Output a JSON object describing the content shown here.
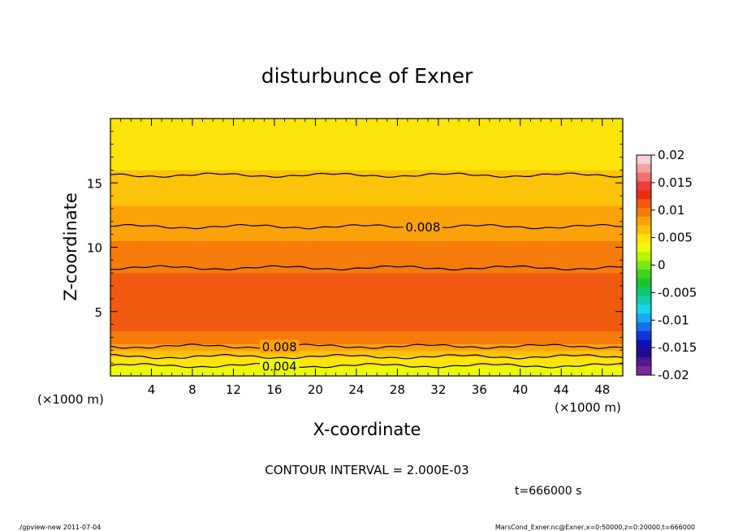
{
  "chart_data": {
    "type": "heatmap",
    "title": "disturbunce of Exner",
    "xlabel": "X-coordinate",
    "ylabel": "Z-coordinate",
    "x_unit_left": "(×1000 m)",
    "x_unit_right": "(×1000 m)",
    "xlim": [
      0,
      50
    ],
    "ylim": [
      0,
      20
    ],
    "xticks": [
      4,
      8,
      12,
      16,
      20,
      24,
      28,
      32,
      36,
      40,
      44,
      48
    ],
    "yticks": [
      5,
      10,
      15
    ],
    "colorbar": {
      "min": -0.02,
      "max": 0.02,
      "ticks": [
        "0.02",
        "0.015",
        "0.01",
        "0.005",
        "0",
        "-0.005",
        "-0.01",
        "-0.015",
        "-0.02"
      ],
      "colors": [
        "#fbd0d8",
        "#f6a0a6",
        "#f07070",
        "#ec3d3a",
        "#ee2a14",
        "#f05a10",
        "#f57b0a",
        "#fba20a",
        "#fdc20a",
        "#fde40a",
        "#ecfb0a",
        "#b8f500",
        "#7de61a",
        "#42d21e",
        "#19c52f",
        "#14c673",
        "#14cbae",
        "#16d6e6",
        "#1aa6f0",
        "#1570eb",
        "#1236d6",
        "#0c12b0",
        "#210c8e",
        "#4f1a90",
        "#7a2a98"
      ]
    },
    "contour_profile": {
      "z": [
        0,
        1,
        2,
        3,
        4,
        6,
        8,
        10,
        12,
        15,
        18,
        20
      ],
      "value": [
        0.0028,
        0.0045,
        0.0072,
        0.0098,
        0.0109,
        0.0113,
        0.0104,
        0.0092,
        0.0079,
        0.0061,
        0.0047,
        0.004
      ]
    },
    "contour_lines": [
      {
        "level": 0.004,
        "z": 0.8,
        "label": "0.004",
        "label_x": 16.5
      },
      {
        "level": 0.006,
        "z": 1.5,
        "label": "",
        "label_x": null
      },
      {
        "level": 0.008,
        "z": 2.3,
        "label": "0.008",
        "label_x": 16.5
      },
      {
        "level": 0.01,
        "z": 8.4,
        "label": "",
        "label_x": null
      },
      {
        "level": 0.008,
        "z": 11.6,
        "label": "0.008",
        "label_x": 30.5
      },
      {
        "level": 0.006,
        "z": 15.6,
        "label": "",
        "label_x": null
      }
    ],
    "contour_interval_text": "CONTOUR INTERVAL = 2.000E-03",
    "time_text": "t=666000 s"
  },
  "footer": {
    "left": "./gpview-new   2011-07-04",
    "right": "MarsCond_Exner.nc@Exner,x=0:50000,z=0:20000,t=666000"
  }
}
